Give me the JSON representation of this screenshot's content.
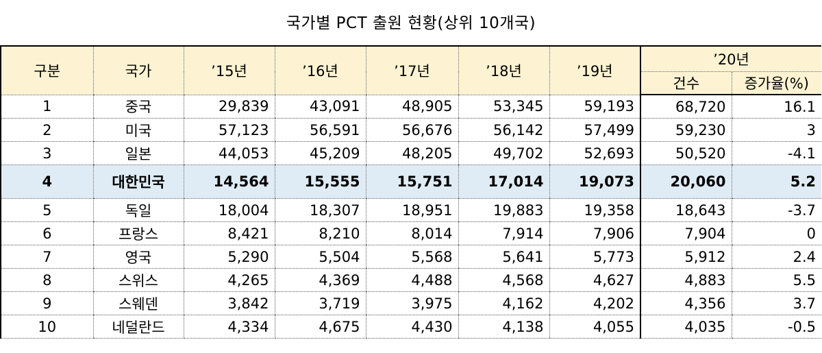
{
  "title": "국가별 PCT 출원 현황(상위 10개국)",
  "header": {
    "rank": "구분",
    "country": "국가",
    "y15": "’15년",
    "y16": "’16년",
    "y17": "’17년",
    "y18": "’18년",
    "y19": "’19년",
    "y20": "’20년",
    "y20_count": "건수",
    "y20_growth": "증가율(%)"
  },
  "rows": [
    {
      "rank": "1",
      "country": "중국",
      "y15": "29,839",
      "y16": "43,091",
      "y17": "48,905",
      "y18": "53,345",
      "y19": "59,193",
      "y20": "68,720",
      "growth": "16.1"
    },
    {
      "rank": "2",
      "country": "미국",
      "y15": "57,123",
      "y16": "56,591",
      "y17": "56,676",
      "y18": "56,142",
      "y19": "57,499",
      "y20": "59,230",
      "growth": "3"
    },
    {
      "rank": "3",
      "country": "일본",
      "y15": "44,053",
      "y16": "45,209",
      "y17": "48,205",
      "y18": "49,702",
      "y19": "52,693",
      "y20": "50,520",
      "growth": "-4.1"
    },
    {
      "rank": "4",
      "country": "대한민국",
      "y15": "14,564",
      "y16": "15,555",
      "y17": "15,751",
      "y18": "17,014",
      "y19": "19,073",
      "y20": "20,060",
      "growth": "5.2"
    },
    {
      "rank": "5",
      "country": "독일",
      "y15": "18,004",
      "y16": "18,307",
      "y17": "18,951",
      "y18": "19,883",
      "y19": "19,358",
      "y20": "18,643",
      "growth": "-3.7"
    },
    {
      "rank": "6",
      "country": "프랑스",
      "y15": "8,421",
      "y16": "8,210",
      "y17": "8,014",
      "y18": "7,914",
      "y19": "7,906",
      "y20": "7,904",
      "growth": "0"
    },
    {
      "rank": "7",
      "country": "영국",
      "y15": "5,290",
      "y16": "5,504",
      "y17": "5,568",
      "y18": "5,641",
      "y19": "5,773",
      "y20": "5,912",
      "growth": "2.4"
    },
    {
      "rank": "8",
      "country": "스위스",
      "y15": "4,265",
      "y16": "4,369",
      "y17": "4,488",
      "y18": "4,568",
      "y19": "4,627",
      "y20": "4,883",
      "growth": "5.5"
    },
    {
      "rank": "9",
      "country": "스웨덴",
      "y15": "3,842",
      "y16": "3,719",
      "y17": "3,975",
      "y18": "4,162",
      "y19": "4,202",
      "y20": "4,356",
      "growth": "3.7"
    },
    {
      "rank": "10",
      "country": "네덜란드",
      "y15": "4,334",
      "y16": "4,675",
      "y17": "4,430",
      "y18": "4,138",
      "y19": "4,055",
      "y20": "4,035",
      "growth": "-0.5"
    }
  ],
  "highlight_row": "4",
  "colors": {
    "header_bg": "#fdf3d2",
    "highlight_bg": "#dfecf6"
  }
}
